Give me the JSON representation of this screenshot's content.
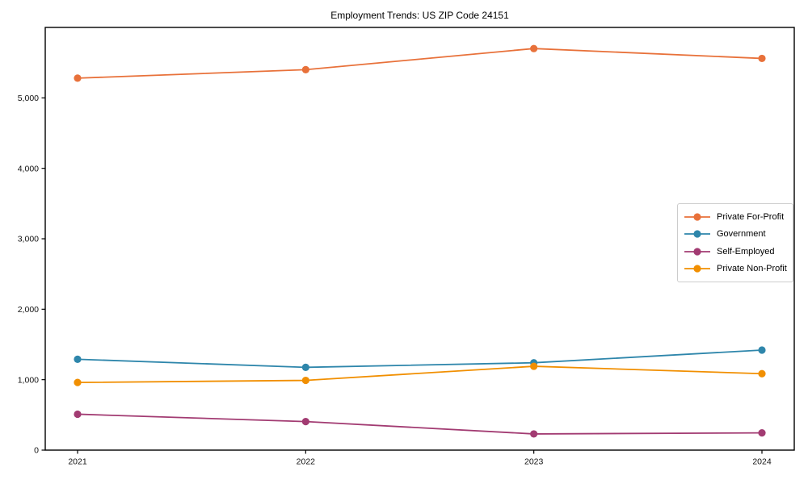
{
  "title": "Employment Trends: US ZIP Code 24151",
  "chart_data": {
    "type": "line",
    "x": [
      2021,
      2022,
      2023,
      2024
    ],
    "xtick_labels": [
      "2021",
      "2022",
      "2023",
      "2024"
    ],
    "series": [
      {
        "name": "Private For-Profit",
        "color": "#E8713A",
        "values": [
          5280,
          5400,
          5700,
          5560
        ]
      },
      {
        "name": "Government",
        "color": "#2E86AB",
        "values": [
          1290,
          1175,
          1240,
          1420
        ]
      },
      {
        "name": "Self-Employed",
        "color": "#A23B72",
        "values": [
          510,
          405,
          230,
          245
        ]
      },
      {
        "name": "Private Non-Profit",
        "color": "#F18F01",
        "values": [
          960,
          990,
          1190,
          1085
        ]
      }
    ],
    "title": "Employment Trends: US ZIP Code 24151",
    "xlabel": "",
    "ylabel": "",
    "ylim": [
      0,
      6000
    ],
    "yticks": [
      0,
      1000,
      2000,
      3000,
      4000,
      5000
    ],
    "ytick_labels": [
      "0",
      "1,000",
      "2,000",
      "3,000",
      "4,000",
      "5,000"
    ],
    "grid": false,
    "legend_position": "center right",
    "marker": "circle",
    "frame": "full-box",
    "axis_color": "#000000"
  }
}
